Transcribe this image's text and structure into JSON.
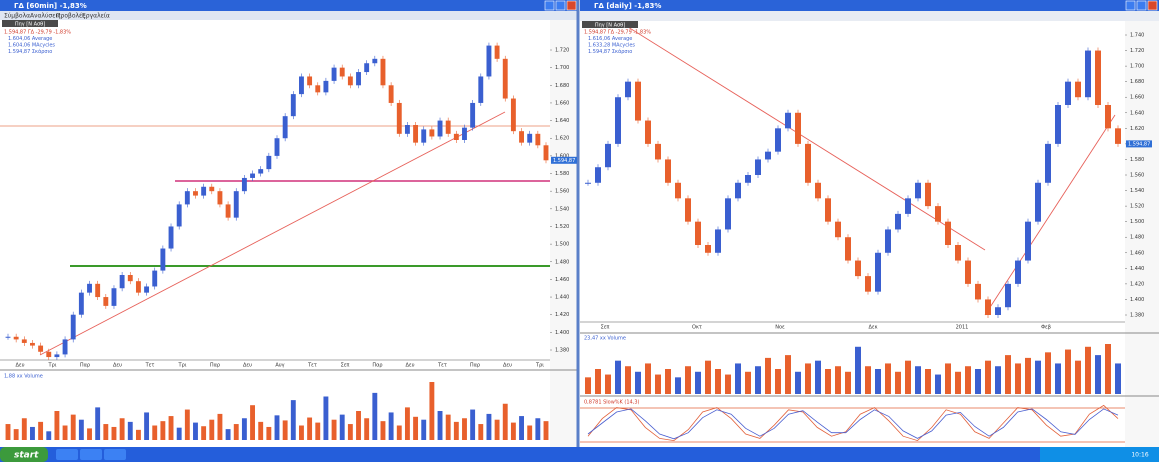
{
  "windows": [
    {
      "title": "ΓΔ [60min] -1,83%",
      "menu": [
        "Σύμβολα",
        "Αναλύσεις",
        "Προβολές",
        "Εργαλεία"
      ],
      "tab": "Πηγ [Ν Ασθ]",
      "legend": [
        "1.594,87 ΓΔ -29,79 -1,83%",
        "1.604,06 Average",
        "1.604,06 MAcycles",
        "1.594,87 Σκάρσιο"
      ],
      "price_ticks": [
        "1.720",
        "1.700",
        "1.680",
        "1.660",
        "1.640",
        "1.620",
        "1.600",
        "1.580",
        "1.560",
        "1.540",
        "1.520",
        "1.500",
        "1.480",
        "1.460",
        "1.440",
        "1.420",
        "1.400",
        "1.380"
      ],
      "last_price": "1.594,87",
      "dates": [
        "Δευ",
        "Τρι",
        "Παρ",
        "Δευ",
        "Τετ",
        "Τρι",
        "Παρ",
        "Δευ",
        "Αυγ",
        "Τετ",
        "Σεπ",
        "Παρ",
        "Δευ",
        "Τετ",
        "Παρ",
        "Δευ",
        "Τρι"
      ],
      "closes": [
        1.395,
        1.392,
        1.388,
        1.385,
        1.378,
        1.372,
        1.375,
        1.392,
        1.42,
        1.445,
        1.455,
        1.44,
        1.43,
        1.45,
        1.465,
        1.458,
        1.445,
        1.452,
        1.47,
        1.495,
        1.52,
        1.545,
        1.56,
        1.555,
        1.565,
        1.56,
        1.545,
        1.53,
        1.56,
        1.575,
        1.58,
        1.585,
        1.6,
        1.62,
        1.645,
        1.67,
        1.69,
        1.68,
        1.672,
        1.685,
        1.7,
        1.69,
        1.68,
        1.695,
        1.705,
        1.71,
        1.68,
        1.66,
        1.625,
        1.635,
        1.615,
        1.63,
        1.622,
        1.64,
        1.625,
        1.618,
        1.632,
        1.66,
        1.69,
        1.725,
        1.71,
        1.665,
        1.628,
        1.615,
        1.625,
        1.612,
        1.595
      ],
      "volume_label": "1,88 xx Volume",
      "volumes": [
        22,
        15,
        30,
        18,
        25,
        12,
        40,
        20,
        35,
        28,
        16,
        45,
        22,
        18,
        30,
        25,
        14,
        38,
        20,
        26,
        33,
        17,
        42,
        24,
        19,
        28,
        36,
        15,
        22,
        30,
        48,
        25,
        18,
        34,
        27,
        55,
        20,
        31,
        24,
        60,
        28,
        35,
        22,
        40,
        30,
        65,
        26,
        38,
        20,
        45,
        32,
        28,
        80,
        40,
        35,
        25,
        30,
        42,
        22,
        36,
        28,
        50,
        24,
        33,
        20,
        30,
        26
      ]
    },
    {
      "title": "ΓΔ [daily] -1,83%",
      "tab": "Πηγ [Ν Ασθ]",
      "legend": [
        "1.594,87 ΓΔ -29,79 -1,83%",
        "1.616,06 Average",
        "1.633,28 MAcycles",
        "1.594,87 Σκάρσιο"
      ],
      "price_ticks": [
        "1.740",
        "1.720",
        "1.700",
        "1.680",
        "1.660",
        "1.640",
        "1.620",
        "1.600",
        "1.580",
        "1.560",
        "1.540",
        "1.520",
        "1.500",
        "1.480",
        "1.460",
        "1.440",
        "1.420",
        "1.400",
        "1.380"
      ],
      "last_price": "1.594,87",
      "dates": [
        "Σεπ",
        "Οκτ",
        "Νοε",
        "Δεκ",
        "2011",
        "Φεβ"
      ],
      "closes": [
        1.55,
        1.57,
        1.6,
        1.66,
        1.68,
        1.63,
        1.6,
        1.58,
        1.55,
        1.53,
        1.5,
        1.47,
        1.46,
        1.49,
        1.53,
        1.55,
        1.56,
        1.58,
        1.59,
        1.62,
        1.64,
        1.6,
        1.55,
        1.53,
        1.5,
        1.48,
        1.45,
        1.43,
        1.41,
        1.46,
        1.49,
        1.51,
        1.53,
        1.55,
        1.52,
        1.5,
        1.47,
        1.45,
        1.42,
        1.4,
        1.38,
        1.39,
        1.42,
        1.45,
        1.5,
        1.55,
        1.6,
        1.65,
        1.68,
        1.66,
        1.72,
        1.65,
        1.62,
        1.6
      ],
      "volume_label": "23,47 xx Volume",
      "volumes": [
        30,
        45,
        35,
        60,
        50,
        40,
        55,
        35,
        45,
        30,
        50,
        40,
        60,
        45,
        35,
        55,
        40,
        50,
        65,
        45,
        70,
        40,
        55,
        60,
        45,
        50,
        40,
        85,
        50,
        45,
        55,
        40,
        60,
        50,
        45,
        35,
        55,
        40,
        50,
        45,
        60,
        50,
        70,
        55,
        65,
        60,
        75,
        55,
        80,
        60,
        85,
        70,
        90,
        55
      ],
      "stoch_label": "0,8781 Slow%K (14,3)",
      "stoch_k": [
        20,
        60,
        85,
        80,
        40,
        15,
        10,
        35,
        75,
        85,
        60,
        25,
        15,
        45,
        80,
        75,
        40,
        20,
        30,
        70,
        85,
        55,
        20,
        10,
        40,
        80,
        70,
        30,
        15,
        50,
        85,
        80,
        45,
        20,
        25,
        70,
        90,
        60
      ],
      "stoch_d": [
        25,
        50,
        75,
        82,
        55,
        25,
        14,
        28,
        62,
        80,
        70,
        38,
        20,
        38,
        70,
        78,
        52,
        28,
        28,
        58,
        80,
        65,
        32,
        15,
        32,
        68,
        74,
        42,
        20,
        40,
        75,
        82,
        58,
        30,
        24,
        58,
        82,
        68
      ]
    }
  ],
  "taskbar": {
    "start": "start",
    "tasks": [
      "",
      "",
      ""
    ],
    "clock": "10:16"
  }
}
